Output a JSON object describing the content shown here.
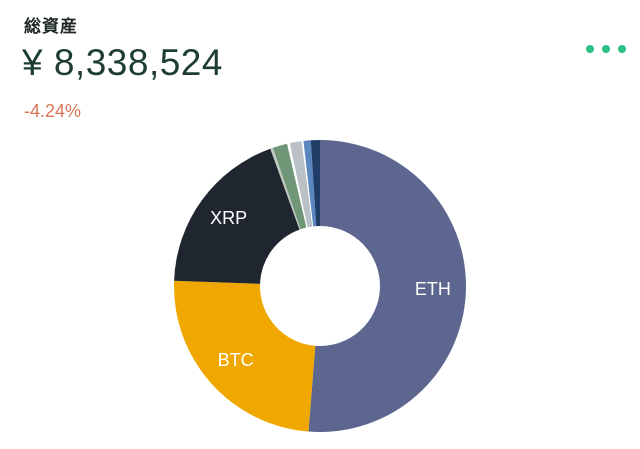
{
  "header": {
    "title": "総資産",
    "total_amount": "¥ 8,338,524",
    "change_percent": "-4.24%",
    "change_color": "#dc7456",
    "more_icon": "more-dots-icon",
    "accent_color": "#2dbf84"
  },
  "chart_data": {
    "type": "pie",
    "style": "donut",
    "unit": "percent of total assets",
    "title": "",
    "slices": [
      {
        "label": "ETH",
        "value": 51.0,
        "color": "#5c668f"
      },
      {
        "label": "BTC",
        "value": 24.2,
        "color": "#f0a800"
      },
      {
        "label": "XRP",
        "value": 18.8,
        "color": "#202630"
      },
      {
        "label": "",
        "value": 0.3,
        "color": "#bfc9c0"
      },
      {
        "label": "",
        "value": 1.6,
        "color": "#6f9777"
      },
      {
        "label": "",
        "value": 0.3,
        "color": "#ffffff"
      },
      {
        "label": "",
        "value": 1.3,
        "color": "#b9c0c6"
      },
      {
        "label": "",
        "value": 0.2,
        "color": "#ffffff"
      },
      {
        "label": "",
        "value": 0.8,
        "color": "#5a87c0"
      },
      {
        "label": "",
        "value": 1.0,
        "color": "#1f3d66"
      }
    ]
  }
}
